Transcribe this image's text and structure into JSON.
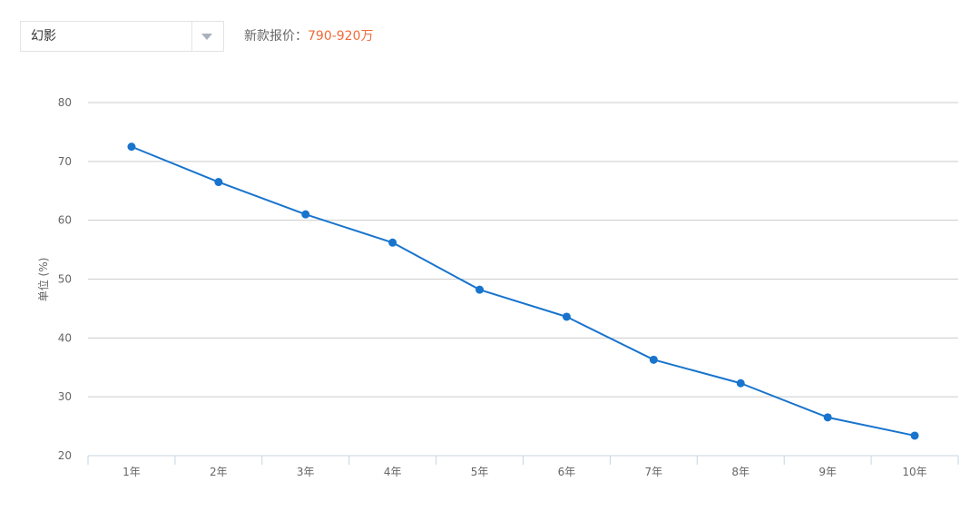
{
  "selector": {
    "value": "幻影",
    "icon": "chevron-down-icon"
  },
  "price": {
    "label": "新款报价",
    "separator": "：",
    "value": "790-920万"
  },
  "colors": {
    "line": "#1874cd",
    "point": "#1874cd",
    "grid": "#cccccc",
    "axis": "#c6d4e1",
    "price_accent": "#f16b3a"
  },
  "chart_data": {
    "type": "line",
    "title": "",
    "xlabel": "",
    "ylabel": "单位 (%)",
    "categories": [
      "1年",
      "2年",
      "3年",
      "4年",
      "5年",
      "6年",
      "7年",
      "8年",
      "9年",
      "10年"
    ],
    "values": [
      72.5,
      66.5,
      61.0,
      56.2,
      48.2,
      43.6,
      36.3,
      32.3,
      26.5,
      23.4
    ],
    "ylim": [
      20,
      80
    ],
    "yticks": [
      "20",
      "30",
      "40",
      "50",
      "60",
      "70",
      "80"
    ],
    "grid": true,
    "legend": "none"
  }
}
